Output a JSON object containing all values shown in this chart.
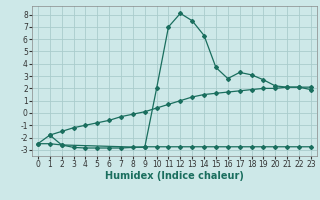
{
  "title": "",
  "xlabel": "Humidex (Indice chaleur)",
  "xlim": [
    -0.5,
    23.5
  ],
  "ylim": [
    -3.5,
    8.7
  ],
  "xticks": [
    0,
    1,
    2,
    3,
    4,
    5,
    6,
    7,
    8,
    9,
    10,
    11,
    12,
    13,
    14,
    15,
    16,
    17,
    18,
    19,
    20,
    21,
    22,
    23
  ],
  "yticks": [
    -3,
    -2,
    -1,
    0,
    1,
    2,
    3,
    4,
    5,
    6,
    7,
    8
  ],
  "bg_color": "#cde8e8",
  "grid_color": "#aacccc",
  "line_color": "#1a6e5e",
  "line1_x": [
    0,
    1,
    2,
    3,
    4,
    5,
    6,
    7,
    8,
    9,
    10,
    11,
    12,
    13,
    14,
    15,
    16,
    17,
    18,
    19,
    20,
    21,
    22,
    23
  ],
  "line1_y": [
    -2.5,
    -2.5,
    -2.6,
    -2.8,
    -2.85,
    -2.85,
    -2.85,
    -2.85,
    -2.8,
    -2.75,
    -2.75,
    -2.75,
    -2.75,
    -2.75,
    -2.75,
    -2.75,
    -2.75,
    -2.75,
    -2.75,
    -2.75,
    -2.75,
    -2.75,
    -2.75,
    -2.75
  ],
  "line2_x": [
    0,
    1,
    2,
    3,
    4,
    5,
    6,
    7,
    8,
    9,
    10,
    11,
    12,
    13,
    14,
    15,
    16,
    17,
    18,
    19,
    20,
    21,
    22,
    23
  ],
  "line2_y": [
    -2.5,
    -1.8,
    -1.5,
    -1.2,
    -1.0,
    -0.8,
    -0.6,
    -0.3,
    -0.1,
    0.1,
    0.4,
    0.7,
    1.0,
    1.3,
    1.5,
    1.6,
    1.7,
    1.8,
    1.9,
    2.0,
    2.0,
    2.1,
    2.1,
    2.1
  ],
  "line3_x": [
    1,
    2,
    9,
    10,
    11,
    12,
    13,
    14,
    15,
    16,
    17,
    18,
    19,
    20,
    21,
    22,
    23
  ],
  "line3_y": [
    -1.8,
    -2.6,
    -2.8,
    2.0,
    7.0,
    8.1,
    7.5,
    6.3,
    3.7,
    2.8,
    3.3,
    3.1,
    2.7,
    2.2,
    2.1,
    2.1,
    1.9
  ],
  "tick_fontsize": 5.5,
  "xlabel_fontsize": 7,
  "marker_size": 2.0,
  "line_width": 0.9
}
